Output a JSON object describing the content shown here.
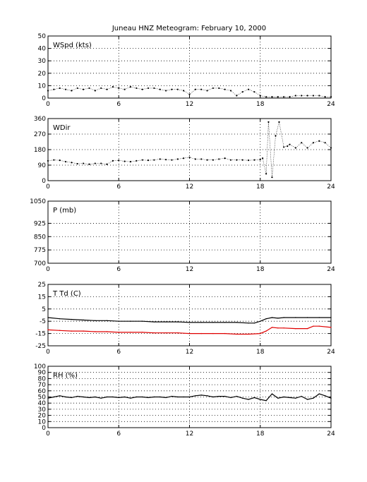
{
  "title": "Juneau HNZ Meteogram:  February 10, 2000",
  "colors": {
    "black": "#000000",
    "red": "#e00000"
  },
  "chart_data": [
    {
      "type": "scatter",
      "label": "WSpd (kts)",
      "ylim": [
        0,
        50
      ],
      "xlim": [
        0,
        24
      ],
      "yticks": [
        0,
        10,
        20,
        30,
        40,
        50
      ],
      "xticks": [
        0,
        6,
        12,
        18,
        24
      ],
      "grid": true,
      "series": [
        {
          "color": "#000000",
          "x": [
            0,
            0.5,
            1,
            1.5,
            2,
            2.5,
            3,
            3.5,
            4,
            4.5,
            5,
            5.5,
            6,
            6.5,
            7,
            7.5,
            8,
            8.5,
            9,
            9.5,
            10,
            10.5,
            11,
            11.5,
            12,
            12.5,
            13,
            13.5,
            14,
            14.5,
            15,
            15.5,
            16,
            16.5,
            17,
            17.5,
            18,
            18.5,
            19,
            19.5,
            20,
            20.5,
            21,
            21.5,
            22,
            22.5,
            23,
            23.5,
            24
          ],
          "y": [
            6,
            7,
            8,
            7,
            6,
            8,
            7,
            8,
            6,
            8,
            7,
            9,
            8,
            7,
            9,
            8,
            7,
            8,
            8,
            7,
            6,
            7,
            7,
            6,
            3,
            7,
            7,
            6,
            8,
            8,
            7,
            6,
            2,
            5,
            7,
            5,
            2,
            1,
            1,
            1,
            1,
            1,
            2,
            2,
            2,
            2,
            2,
            1,
            1
          ]
        }
      ]
    },
    {
      "type": "scatter",
      "label": "WDir",
      "ylim": [
        0,
        360
      ],
      "xlim": [
        0,
        24
      ],
      "yticks": [
        0,
        90,
        180,
        270,
        360
      ],
      "xticks": [
        0,
        6,
        12,
        18,
        24
      ],
      "grid": true,
      "series": [
        {
          "color": "#000000",
          "x": [
            0,
            0.5,
            1,
            1.5,
            2,
            2.5,
            3,
            3.5,
            4,
            4.5,
            5,
            5.5,
            6,
            6.5,
            7,
            7.5,
            8,
            8.5,
            9,
            9.5,
            10,
            10.5,
            11,
            11.5,
            12,
            12.5,
            13,
            13.5,
            14,
            14.5,
            15,
            15.5,
            16,
            16.5,
            17,
            17.5,
            18,
            18.2,
            18.5,
            18.7,
            19,
            19.3,
            19.6,
            20,
            20.3,
            20.5,
            21,
            21.5,
            22,
            22.5,
            23,
            23.5,
            24
          ],
          "y": [
            115,
            120,
            118,
            110,
            105,
            98,
            100,
            95,
            100,
            100,
            95,
            115,
            118,
            112,
            110,
            115,
            120,
            118,
            120,
            125,
            122,
            120,
            125,
            130,
            135,
            125,
            125,
            120,
            120,
            125,
            130,
            120,
            120,
            120,
            118,
            120,
            122,
            130,
            40,
            340,
            20,
            260,
            340,
            195,
            200,
            210,
            190,
            220,
            190,
            220,
            230,
            220,
            190
          ]
        }
      ]
    },
    {
      "type": "scatter",
      "label": "P (mb)",
      "ylim": [
        700,
        1050
      ],
      "xlim": [
        0,
        24
      ],
      "yticks": [
        700,
        775,
        850,
        925,
        1050
      ],
      "xticks": [
        0,
        6,
        12,
        18,
        24
      ],
      "grid": true,
      "series": []
    },
    {
      "type": "line",
      "label": "T Td (C)",
      "ylim": [
        -25,
        25
      ],
      "xlim": [
        0,
        24
      ],
      "yticks": [
        -25,
        -15,
        -5,
        5,
        15,
        25
      ],
      "xticks": [
        0,
        6,
        12,
        18,
        24
      ],
      "grid": true,
      "series": [
        {
          "color": "#000000",
          "x": [
            0,
            1,
            2,
            3,
            4,
            5,
            6,
            7,
            8,
            9,
            10,
            11,
            12,
            13,
            14,
            15,
            16,
            17,
            17.5,
            18,
            18.5,
            19,
            19.5,
            20,
            21,
            22,
            23,
            24
          ],
          "y": [
            -2,
            -3,
            -3.5,
            -4,
            -4.5,
            -4.5,
            -5,
            -5,
            -5,
            -5.5,
            -5.5,
            -5.5,
            -6,
            -6,
            -6,
            -6,
            -6,
            -6.5,
            -6.5,
            -5,
            -3,
            -2,
            -2.5,
            -2,
            -2,
            -2,
            -2,
            -2
          ]
        },
        {
          "color": "#e00000",
          "x": [
            0,
            1,
            2,
            3,
            4,
            5,
            6,
            7,
            8,
            9,
            10,
            11,
            12,
            13,
            14,
            15,
            16,
            17,
            18,
            18.5,
            19,
            19.5,
            20,
            21,
            22,
            22.5,
            23,
            24
          ],
          "y": [
            -12,
            -12.5,
            -13,
            -13,
            -13.5,
            -13.5,
            -14,
            -14,
            -14,
            -14.5,
            -14.5,
            -14.5,
            -15,
            -15,
            -15,
            -15,
            -15.5,
            -15.5,
            -15,
            -13,
            -10,
            -10.5,
            -10.5,
            -11,
            -11,
            -9,
            -9,
            -10
          ]
        }
      ]
    },
    {
      "type": "line",
      "label": "RH (%)",
      "ylim": [
        0,
        100
      ],
      "xlim": [
        0,
        24
      ],
      "yticks": [
        0,
        10,
        20,
        30,
        40,
        50,
        60,
        70,
        80,
        90,
        100
      ],
      "xticks": [
        0,
        6,
        12,
        18,
        24
      ],
      "grid": true,
      "series": [
        {
          "color": "#000000",
          "x": [
            0,
            0.5,
            1,
            1.5,
            2,
            2.5,
            3,
            3.5,
            4,
            4.5,
            5,
            5.5,
            6,
            6.5,
            7,
            7.5,
            8,
            8.5,
            9,
            9.5,
            10,
            10.5,
            11,
            11.5,
            12,
            12.5,
            13,
            13.5,
            14,
            14.5,
            15,
            15.5,
            16,
            16.5,
            17,
            17.5,
            18,
            18.5,
            19,
            19.5,
            20,
            20.5,
            21,
            21.5,
            22,
            22.5,
            23,
            23.5,
            24
          ],
          "y": [
            48,
            50,
            52,
            50,
            49,
            51,
            50,
            49,
            50,
            48,
            50,
            50,
            49,
            50,
            48,
            50,
            50,
            49,
            50,
            50,
            49,
            51,
            50,
            50,
            50,
            52,
            53,
            52,
            50,
            51,
            51,
            49,
            51,
            48,
            46,
            49,
            46,
            44,
            55,
            48,
            50,
            49,
            48,
            51,
            46,
            48,
            55,
            52,
            48
          ]
        }
      ]
    }
  ]
}
